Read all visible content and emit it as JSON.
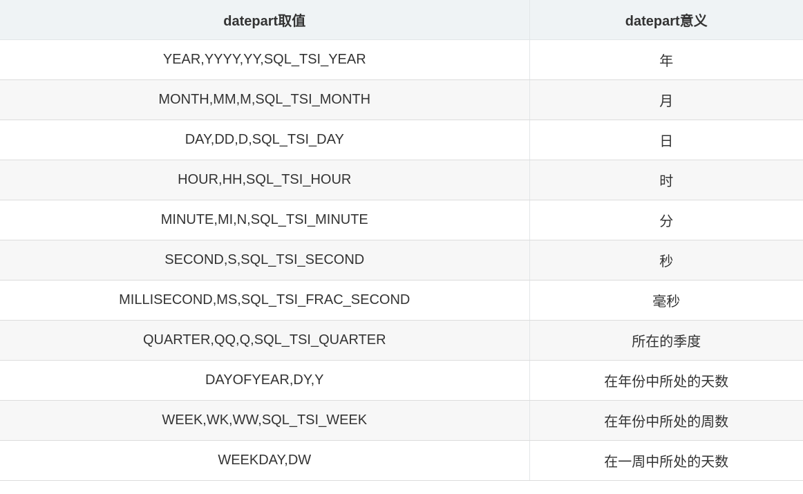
{
  "table": {
    "headers": [
      "datepart取值",
      "datepart意义"
    ],
    "rows": [
      [
        "YEAR,YYYY,YY,SQL_TSI_YEAR",
        "年"
      ],
      [
        "MONTH,MM,M,SQL_TSI_MONTH",
        "月"
      ],
      [
        "DAY,DD,D,SQL_TSI_DAY",
        "日"
      ],
      [
        "HOUR,HH,SQL_TSI_HOUR",
        "时"
      ],
      [
        "MINUTE,MI,N,SQL_TSI_MINUTE",
        "分"
      ],
      [
        "SECOND,S,SQL_TSI_SECOND",
        "秒"
      ],
      [
        "MILLISECOND,MS,SQL_TSI_FRAC_SECOND",
        "毫秒"
      ],
      [
        "QUARTER,QQ,Q,SQL_TSI_QUARTER",
        "所在的季度"
      ],
      [
        "DAYOFYEAR,DY,Y",
        "在年份中所处的天数"
      ],
      [
        "WEEK,WK,WW,SQL_TSI_WEEK",
        "在年份中所处的周数"
      ],
      [
        "WEEKDAY,DW",
        "在一周中所处的天数"
      ]
    ]
  }
}
